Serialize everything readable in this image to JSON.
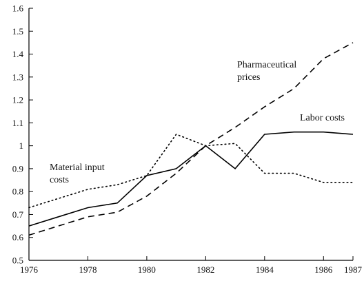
{
  "chart_data": {
    "type": "line",
    "title": "",
    "xlabel": "",
    "ylabel": "",
    "xlim": [
      1976,
      1987
    ],
    "ylim": [
      0.5,
      1.6
    ],
    "grid": false,
    "legend": "none",
    "x_ticks": [
      "1976",
      "1978",
      "1980",
      "1982",
      "1984",
      "1986",
      "1987"
    ],
    "y_ticks": [
      "0.5",
      "0.6",
      "0.7",
      "0.8",
      "0.9",
      "1",
      "1.1",
      "1.2",
      "1.3",
      "1.4",
      "1.5",
      "1.6"
    ],
    "x": [
      1976,
      1977,
      1978,
      1979,
      1980,
      1981,
      1982,
      1983,
      1984,
      1985,
      1986,
      1987
    ],
    "series": [
      {
        "name": "Labor costs",
        "style": "solid",
        "values": [
          0.65,
          0.69,
          0.73,
          0.75,
          0.87,
          0.9,
          1.0,
          0.9,
          1.05,
          1.06,
          1.06,
          1.05
        ]
      },
      {
        "name": "Pharmaceutical prices",
        "style": "dashed",
        "values": [
          0.61,
          0.65,
          0.69,
          0.71,
          0.78,
          0.88,
          1.0,
          1.08,
          1.17,
          1.25,
          1.38,
          1.45
        ]
      },
      {
        "name": "Material input costs",
        "style": "dotted",
        "values": [
          0.73,
          0.77,
          0.81,
          0.83,
          0.87,
          1.05,
          1.0,
          1.01,
          0.88,
          0.88,
          0.84,
          0.84
        ]
      }
    ],
    "annotations": [
      {
        "lines": [
          "Pharmaceutical",
          "prices"
        ],
        "series": "Pharmaceutical prices"
      },
      {
        "lines": [
          "Labor costs"
        ],
        "series": "Labor costs"
      },
      {
        "lines": [
          "Material input",
          "costs"
        ],
        "series": "Material input costs"
      }
    ],
    "colors": {
      "ink": "#000000",
      "background": "#ffffff"
    }
  }
}
